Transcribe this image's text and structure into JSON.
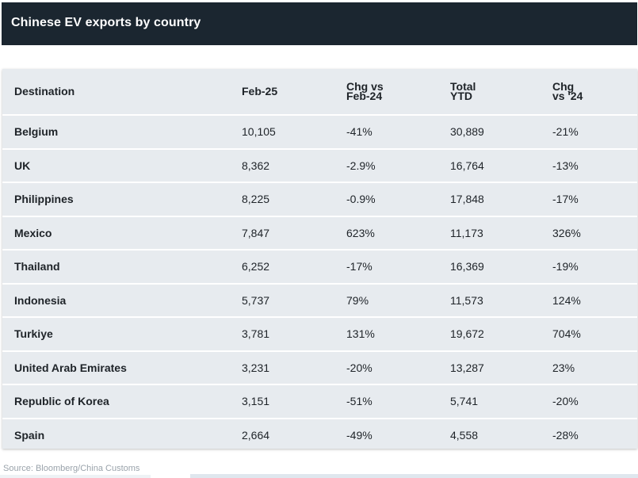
{
  "chart_data": {
    "type": "table",
    "title": "Chinese EV exports by country",
    "columns": [
      "Destination",
      "Feb-25",
      "Chg vs\nFeb-24",
      "Total\nYTD",
      "Chg\nvs '24"
    ],
    "rows": [
      [
        "Belgium",
        "10,105",
        "-41%",
        "30,889",
        "-21%"
      ],
      [
        "UK",
        "8,362",
        "-2.9%",
        "16,764",
        "-13%"
      ],
      [
        "Philippines",
        "8,225",
        "-0.9%",
        "17,848",
        "-17%"
      ],
      [
        "Mexico",
        "7,847",
        "623%",
        "11,173",
        "326%"
      ],
      [
        "Thailand",
        "6,252",
        "-17%",
        "16,369",
        "-19%"
      ],
      [
        "Indonesia",
        "5,737",
        "79%",
        "11,573",
        "124%"
      ],
      [
        "Turkiye",
        "3,781",
        "131%",
        "19,672",
        "704%"
      ],
      [
        "United Arab Emirates",
        "3,231",
        "-20%",
        "13,287",
        "23%"
      ],
      [
        "Republic of Korea",
        "3,151",
        "-51%",
        "5,741",
        "-20%"
      ],
      [
        "Spain",
        "2,664",
        "-49%",
        "4,558",
        "-28%"
      ]
    ],
    "source": "Source: Bloomberg/China Customs"
  },
  "colors": {
    "header_bg": "#1b2630",
    "table_bg": "#e7ebef",
    "row_divider": "#ffffff",
    "text": "#1e2328",
    "source_text": "#9aa3ab"
  }
}
